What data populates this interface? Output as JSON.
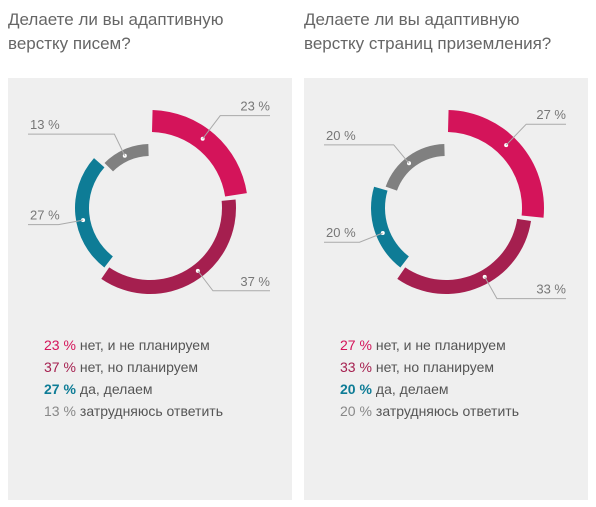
{
  "colors": {
    "net_ne_planiruem": "#d4145a",
    "net_no_planiruem": "#a51f4f",
    "da_delaem": "#0e7c96",
    "zatrudnyayus": "#808080",
    "label_line": "#aaaaaa",
    "label_text": "#777777"
  },
  "chart_data": [
    {
      "type": "pie",
      "title": "Делаете ли вы адаптивную верстку писем?",
      "categories": [
        "нет, и не планируем",
        "нет, но планируем",
        "да, делаем",
        "затрудняюсь ответить"
      ],
      "values": [
        23,
        37,
        27,
        13
      ],
      "labels": [
        "23 %",
        "37 %",
        "27 %",
        "13 %"
      ],
      "legend_pct": [
        "23 %",
        "37 %",
        "27 %",
        "13 %"
      ],
      "colors": [
        "#d4145a",
        "#a51f4f",
        "#0e7c96",
        "#808080"
      ]
    },
    {
      "type": "pie",
      "title": "Делаете ли вы адаптивную верстку страниц приземления?",
      "categories": [
        "нет, и не планируем",
        "нет, но планируем",
        "да, делаем",
        "затрудняюсь ответить"
      ],
      "values": [
        27,
        33,
        20,
        20
      ],
      "labels": [
        "27 %",
        "33 %",
        "20 %",
        "20 %"
      ],
      "legend_pct": [
        "27 %",
        "33 %",
        "20 %",
        "20 %"
      ],
      "colors": [
        "#d4145a",
        "#a51f4f",
        "#0e7c96",
        "#808080"
      ]
    }
  ],
  "titles": [
    [
      "Делаете ли вы адаптивную",
      "верстку писем?"
    ],
    [
      "Делаете ли вы адаптивную",
      "верстку страниц приземления?"
    ]
  ]
}
